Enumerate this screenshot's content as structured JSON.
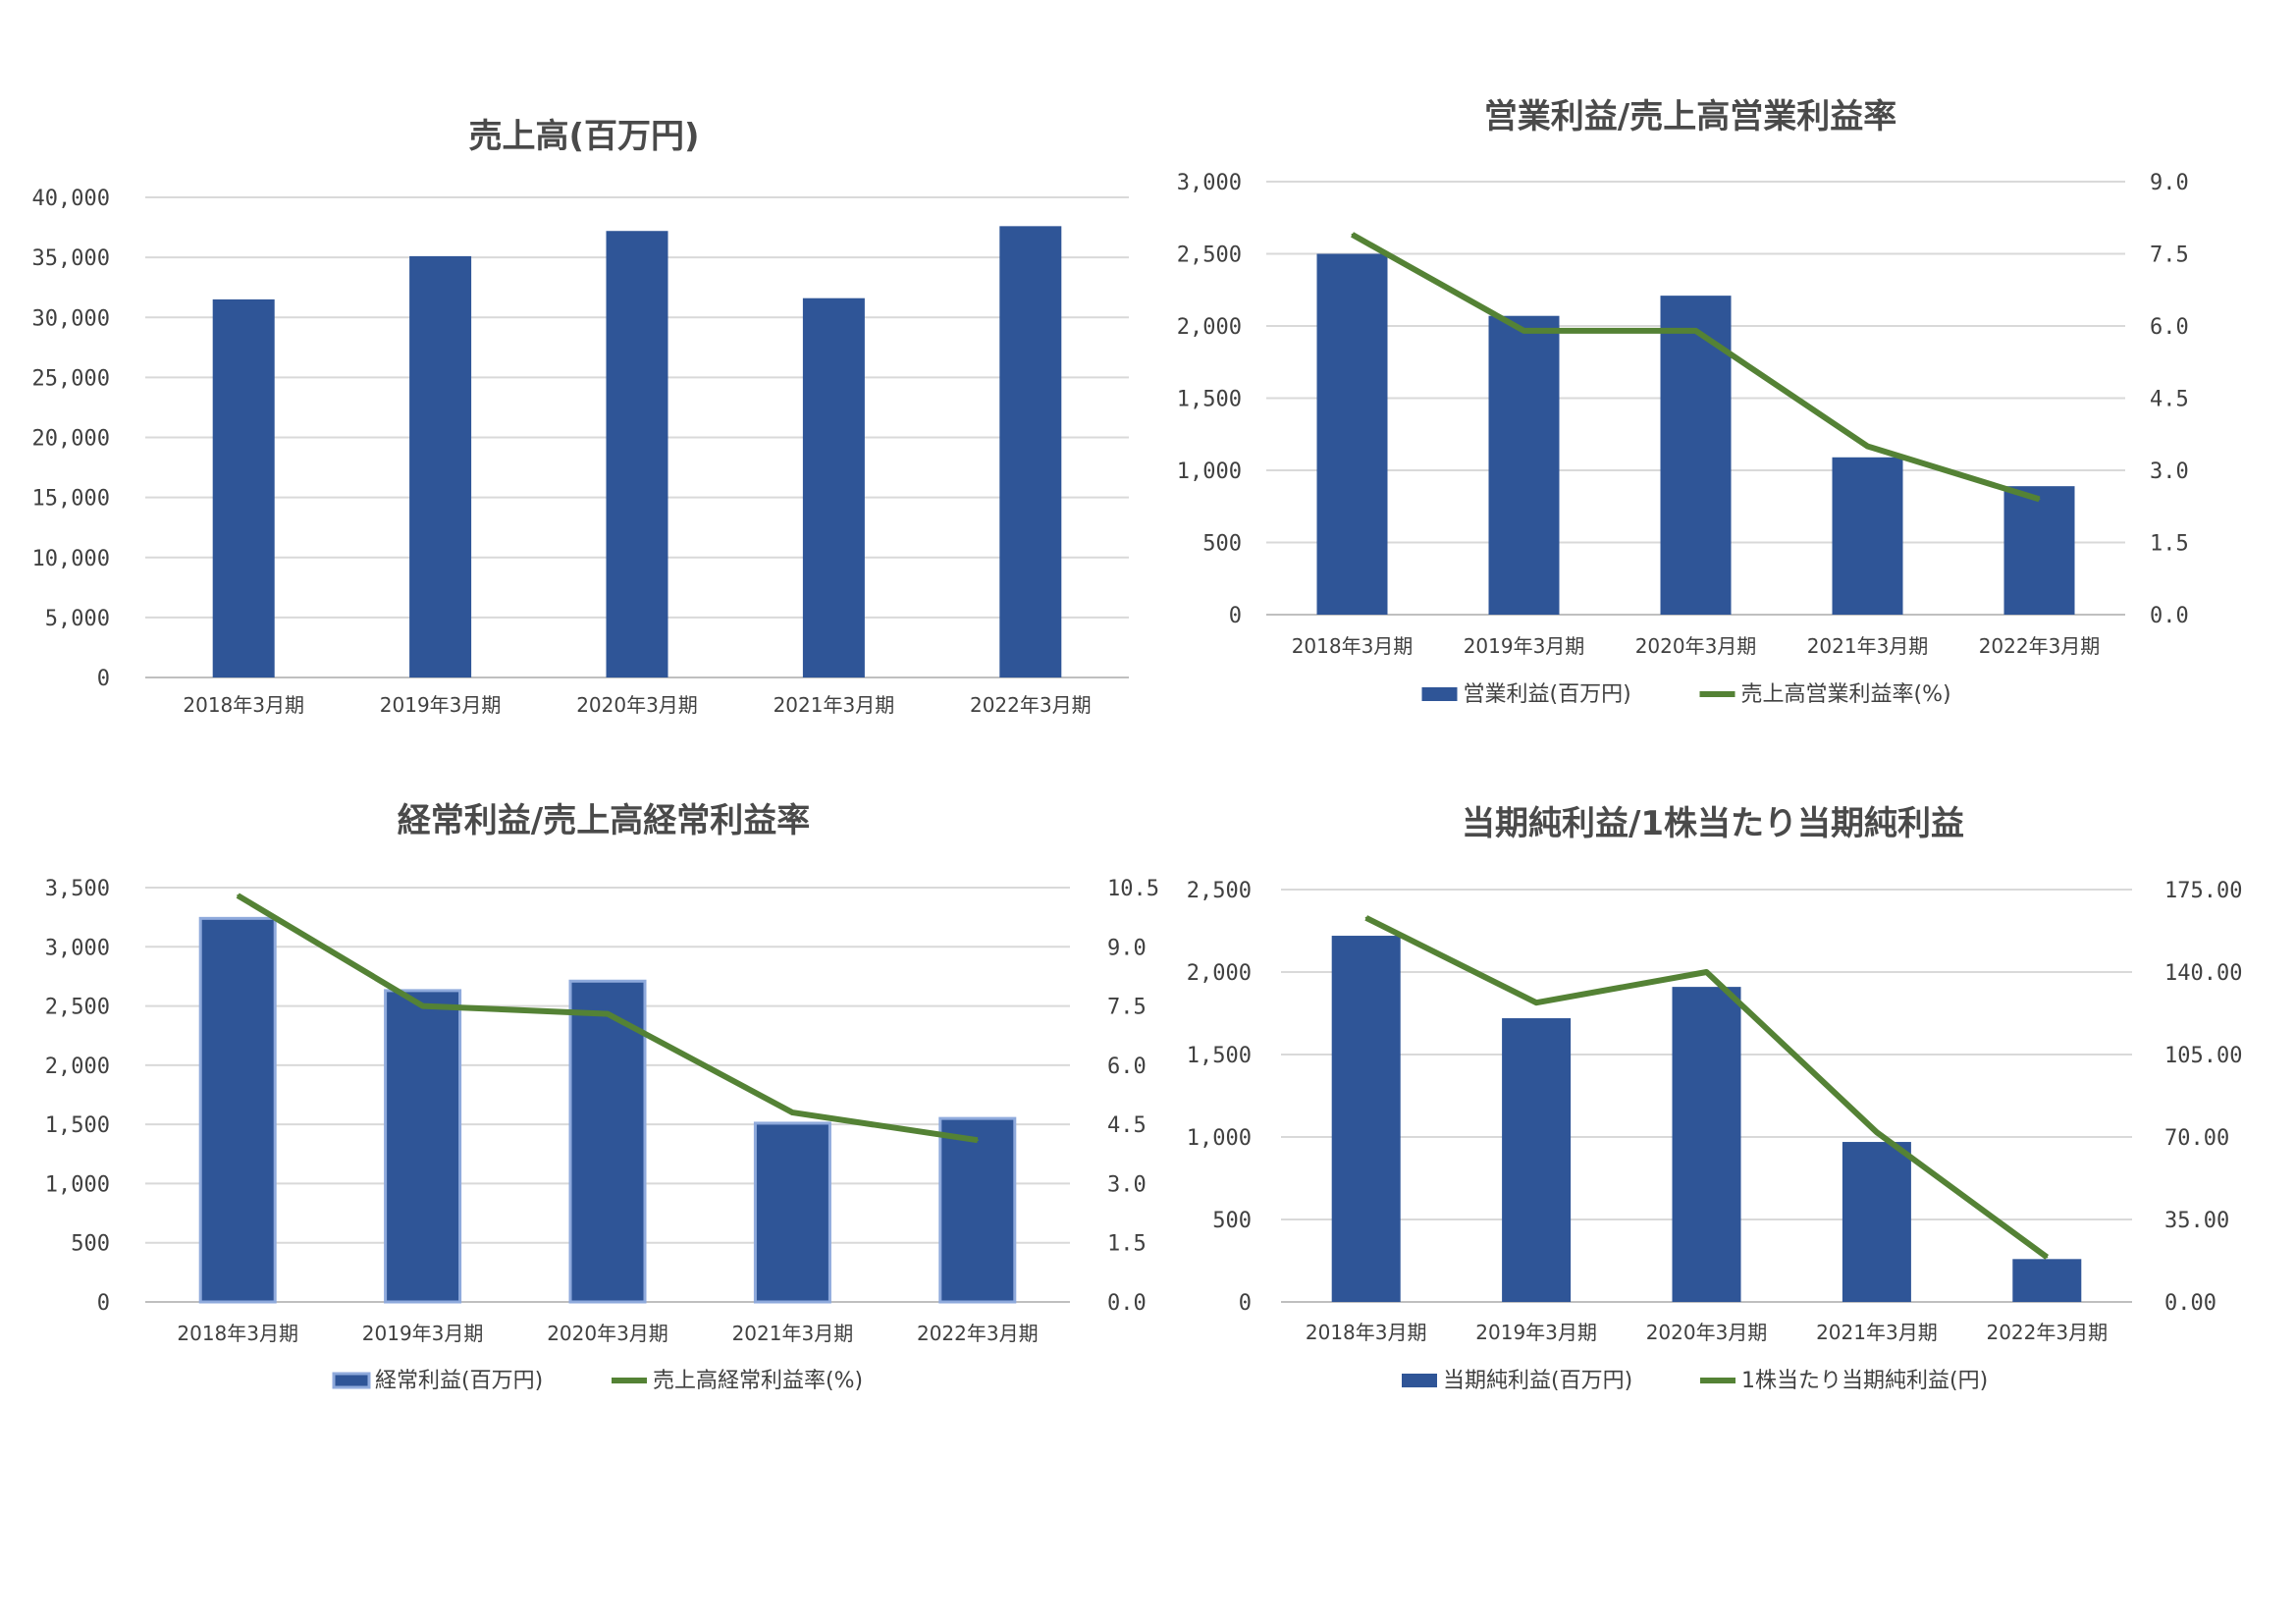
{
  "chart_data": [
    {
      "type": "bar",
      "title": "売上高(百万円)",
      "categories": [
        "2018年3月期",
        "2019年3月期",
        "2020年3月期",
        "2021年3月期",
        "2022年3月期"
      ],
      "series": [
        {
          "name": "",
          "values": [
            31500,
            35100,
            37200,
            31600,
            37600
          ],
          "color": "#2f5597"
        }
      ],
      "ylim": [
        0,
        40000
      ],
      "yticks": [
        "0",
        "5,000",
        "10,000",
        "15,000",
        "20,000",
        "25,000",
        "30,000",
        "35,000",
        "40,000"
      ],
      "grid": true,
      "legend": "none"
    },
    {
      "type": "bar+line",
      "title": "営業利益/売上高営業利益率",
      "categories": [
        "2018年3月期",
        "2019年3月期",
        "2020年3月期",
        "2021年3月期",
        "2022年3月期"
      ],
      "series": [
        {
          "name": "営業利益(百万円)",
          "type": "bar",
          "axis": "left",
          "values": [
            2500,
            2070,
            2210,
            1090,
            890
          ],
          "color": "#2f5597"
        },
        {
          "name": "売上高営業利益率(%)",
          "type": "line",
          "axis": "right",
          "values": [
            7.9,
            5.9,
            5.9,
            3.5,
            2.4
          ],
          "color": "#548235"
        }
      ],
      "ylim": [
        0,
        3000
      ],
      "yticks": [
        "0",
        "500",
        "1,000",
        "1,500",
        "2,000",
        "2,500",
        "3,000"
      ],
      "y2lim": [
        0,
        9
      ],
      "y2ticks": [
        "0.0",
        "1.5",
        "3.0",
        "4.5",
        "6.0",
        "7.5",
        "9.0"
      ],
      "grid": true,
      "legend": "bottom"
    },
    {
      "type": "bar+line",
      "title": "経常利益/売上高経常利益率",
      "categories": [
        "2018年3月期",
        "2019年3月期",
        "2020年3月期",
        "2021年3月期",
        "2022年3月期"
      ],
      "series": [
        {
          "name": "経常利益(百万円)",
          "type": "bar",
          "axis": "left",
          "values": [
            3240,
            2630,
            2710,
            1510,
            1550
          ],
          "color": "#2f5597",
          "edge": "#8faadc"
        },
        {
          "name": "売上高経常利益率(%)",
          "type": "line",
          "axis": "right",
          "values": [
            10.3,
            7.5,
            7.3,
            4.8,
            4.1
          ],
          "color": "#548235"
        }
      ],
      "ylim": [
        0,
        3500
      ],
      "yticks": [
        "0",
        "500",
        "1,000",
        "1,500",
        "2,000",
        "2,500",
        "3,000",
        "3,500"
      ],
      "y2lim": [
        0,
        10.5
      ],
      "y2ticks": [
        "0.0",
        "1.5",
        "3.0",
        "4.5",
        "6.0",
        "7.5",
        "9.0",
        "10.5"
      ],
      "grid": true,
      "legend": "bottom"
    },
    {
      "type": "bar+line",
      "title": "当期純利益/1株当たり当期純利益",
      "categories": [
        "2018年3月期",
        "2019年3月期",
        "2020年3月期",
        "2021年3月期",
        "2022年3月期"
      ],
      "series": [
        {
          "name": "当期純利益(百万円)",
          "type": "bar",
          "axis": "left",
          "values": [
            2220,
            1720,
            1910,
            970,
            260
          ],
          "color": "#2f5597"
        },
        {
          "name": "1株当たり当期純利益(円)",
          "type": "line",
          "axis": "right",
          "values": [
            163,
            127,
            140,
            72,
            19
          ],
          "color": "#548235"
        }
      ],
      "ylim": [
        0,
        2500
      ],
      "yticks": [
        "0",
        "500",
        "1,000",
        "1,500",
        "2,000",
        "2,500"
      ],
      "y2lim": [
        0,
        175
      ],
      "y2ticks": [
        "0.00",
        "35.00",
        "70.00",
        "105.00",
        "140.00",
        "175.00"
      ],
      "grid": true,
      "legend": "bottom"
    }
  ]
}
